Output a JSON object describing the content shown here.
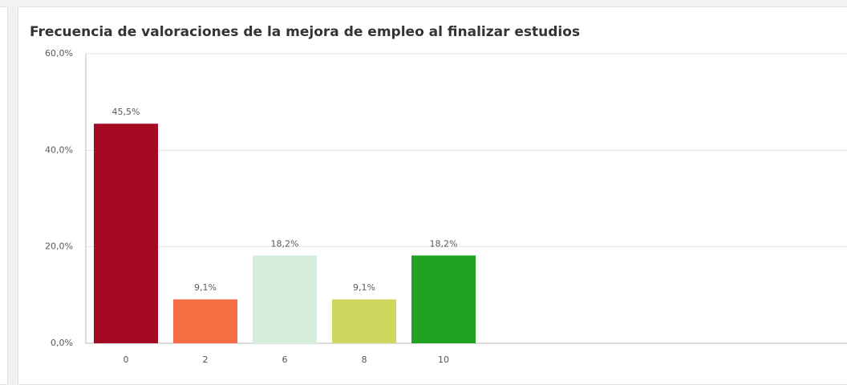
{
  "chart_data": {
    "type": "bar",
    "title": "Frecuencia de valoraciones de la mejora de empleo al finalizar estudios",
    "categories": [
      "0",
      "2",
      "6",
      "8",
      "10"
    ],
    "values": [
      45.5,
      9.1,
      18.2,
      9.1,
      18.2
    ],
    "value_labels": [
      "45,5%",
      "9,1%",
      "18,2%",
      "9,1%",
      "18,2%"
    ],
    "colors": [
      "#a50a24",
      "#f46d43",
      "#d4eedb",
      "#cfd75e",
      "#1fa320"
    ],
    "ylim": [
      0,
      60
    ],
    "yticks": [
      {
        "value": 0,
        "label": "0,0%"
      },
      {
        "value": 20,
        "label": "20,0%"
      },
      {
        "value": 40,
        "label": "40,0%"
      },
      {
        "value": 60,
        "label": "60,0%"
      }
    ],
    "grid": true
  }
}
